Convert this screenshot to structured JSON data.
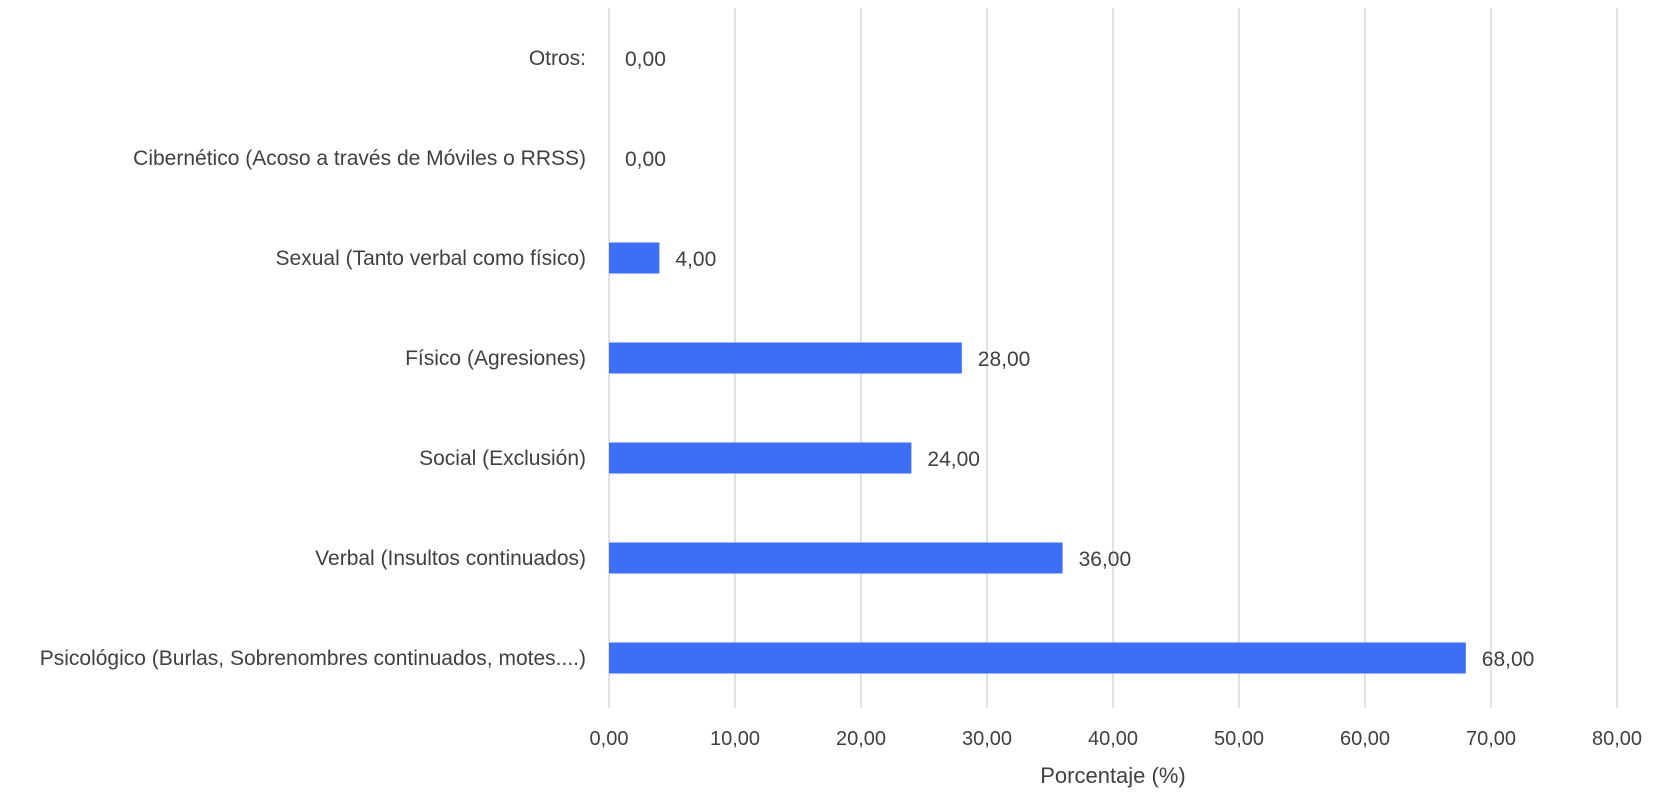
{
  "chart_data": {
    "type": "bar",
    "orientation": "horizontal",
    "categories": [
      "Otros:",
      "Cibernético (Acoso a través de Móviles o RRSS)",
      "Sexual (Tanto verbal como físico)",
      "Físico (Agresiones)",
      "Social (Exclusión)",
      "Verbal (Insultos continuados)",
      "Psicológico (Burlas, Sobrenombres continuados, motes....)"
    ],
    "values": [
      0,
      0,
      4,
      28,
      24,
      36,
      68
    ],
    "data_labels": [
      "0,00",
      "0,00",
      "4,00",
      "28,00",
      "24,00",
      "36,00",
      "68,00"
    ],
    "xlabel": "Porcentaje (%)",
    "ylabel": "",
    "xlim": [
      0,
      80
    ],
    "x_ticks": [
      0,
      10,
      20,
      30,
      40,
      50,
      60,
      70,
      80
    ],
    "x_tick_labels": [
      "0,00",
      "10,00",
      "20,00",
      "30,00",
      "40,00",
      "50,00",
      "60,00",
      "70,00",
      "80,00"
    ],
    "grid": true,
    "legend": "none",
    "bar_color": "#3e6ef5"
  }
}
